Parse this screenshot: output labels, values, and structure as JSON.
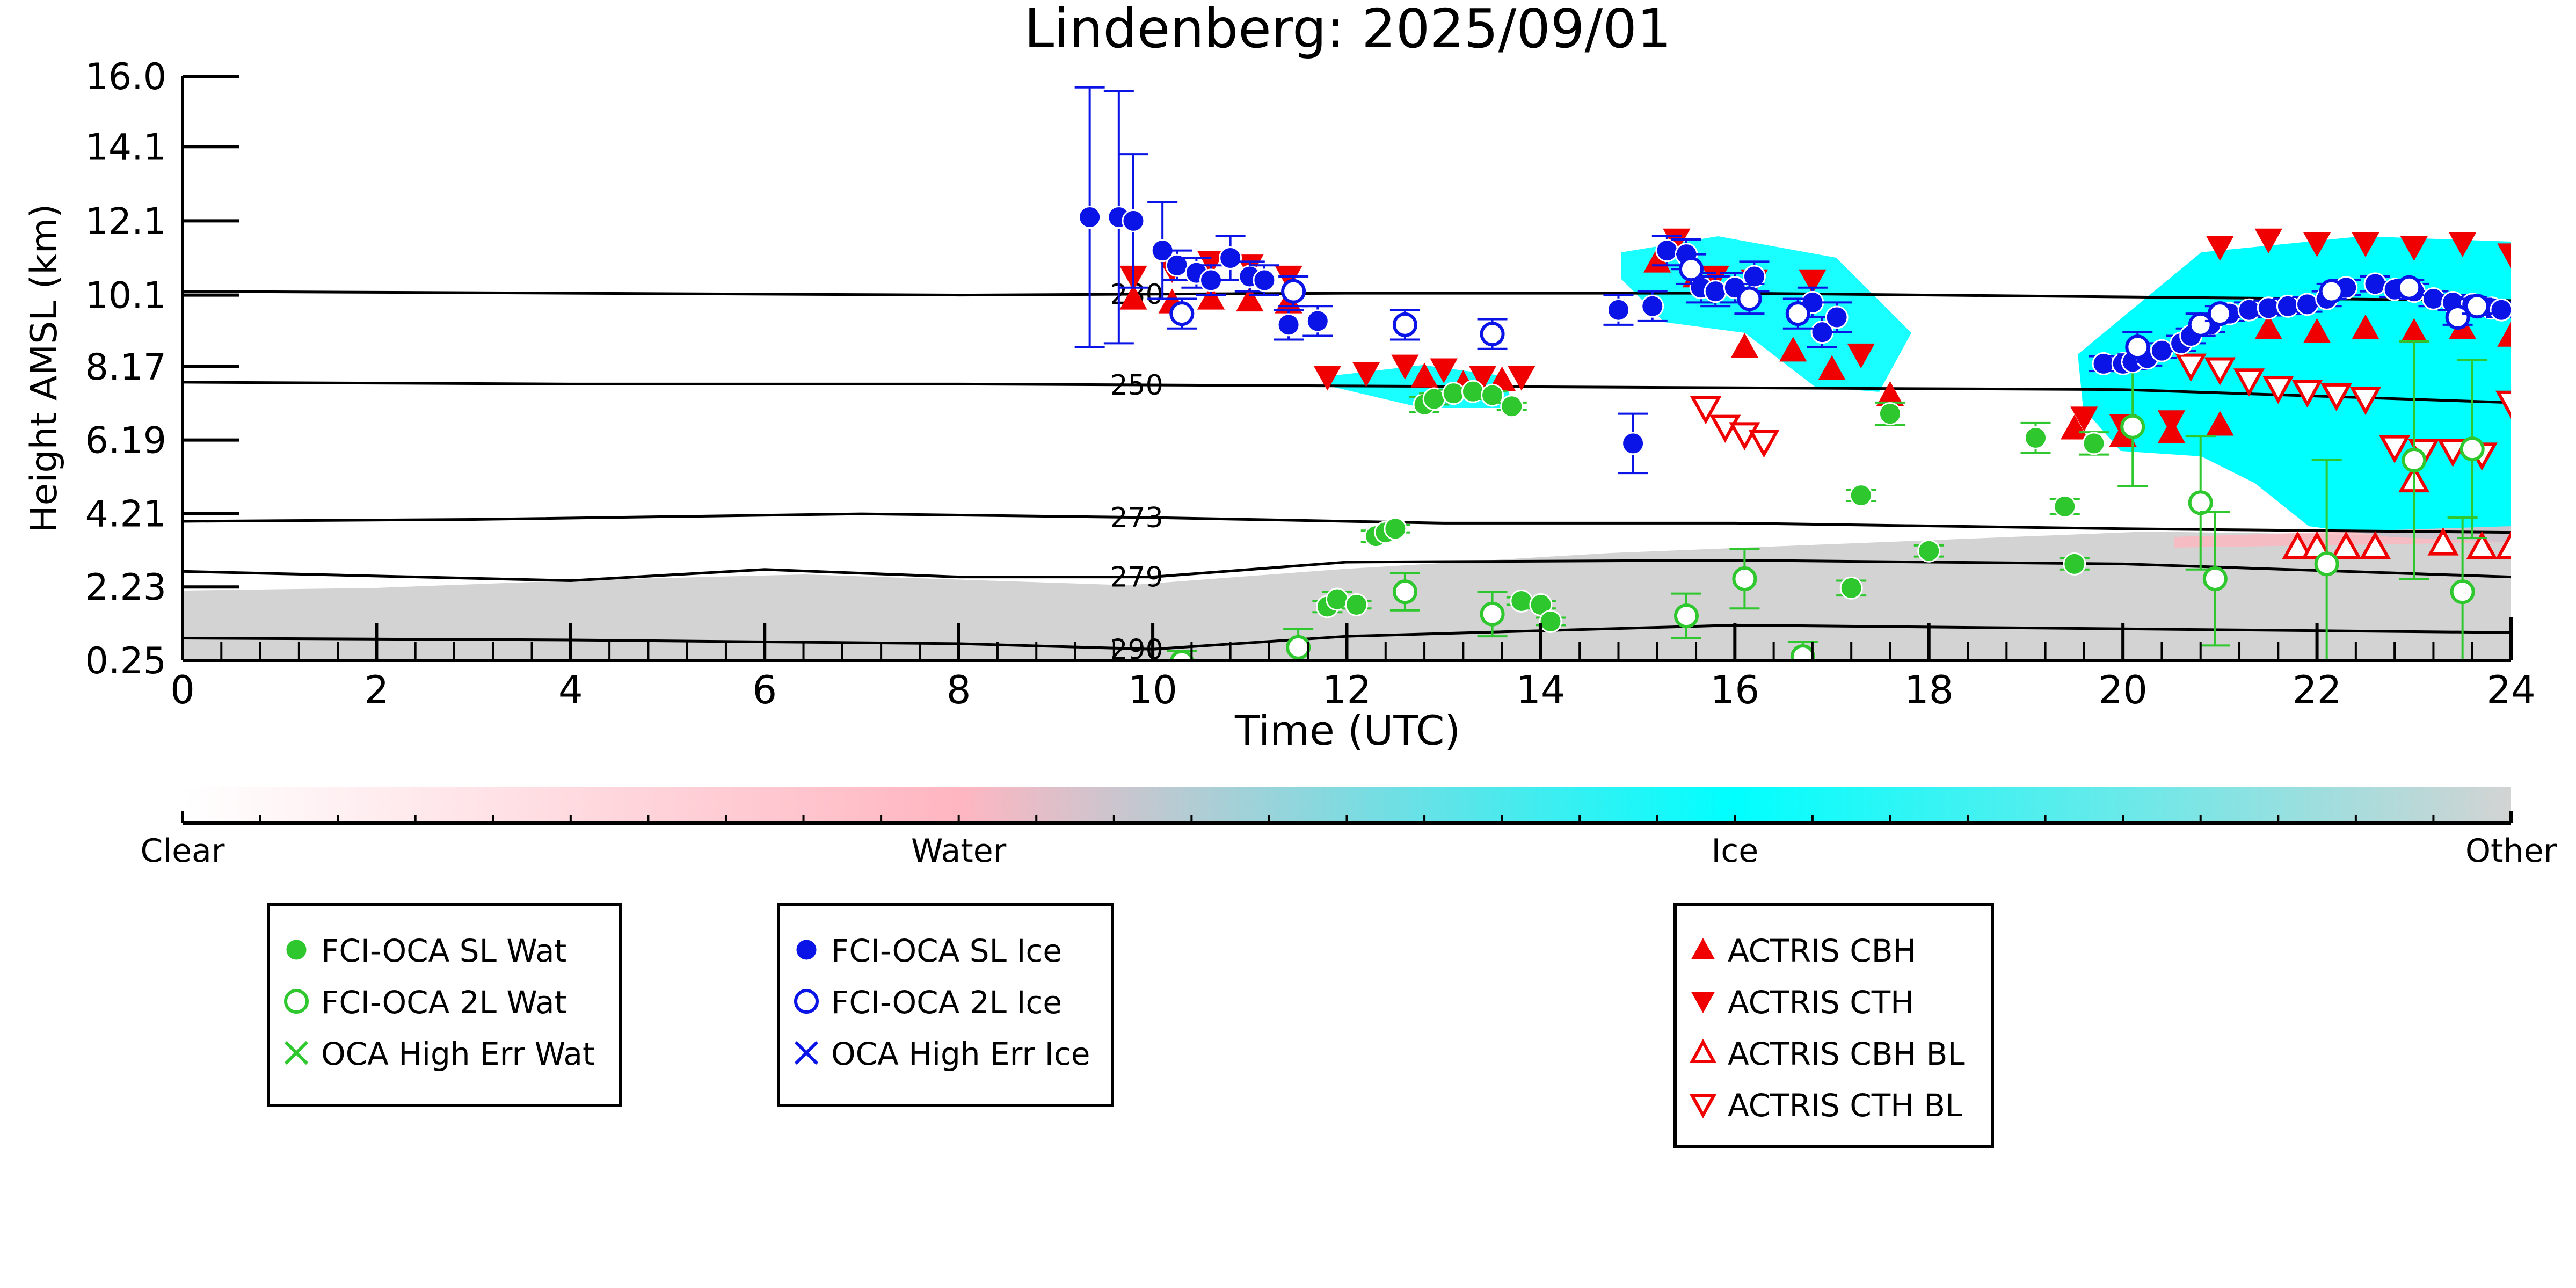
{
  "chart_data": {
    "type": "scatter",
    "title": "Lindenberg: 2025/09/01",
    "xlabel": "Time (UTC)",
    "ylabel": "Height AMSL (km)",
    "xlim": [
      0,
      24
    ],
    "ylim": [
      0.25,
      16.0
    ],
    "xticks": [
      "0",
      "2",
      "4",
      "6",
      "8",
      "10",
      "12",
      "14",
      "16",
      "18",
      "20",
      "22",
      "24"
    ],
    "yticks": [
      "0.25",
      "2.23",
      "4.21",
      "6.19",
      "8.17",
      "10.1",
      "12.1",
      "14.1",
      "16.0"
    ],
    "colorbar": {
      "labels": [
        "Clear",
        "Water",
        "Ice",
        "Other"
      ],
      "colors": [
        "#ffffff",
        "#ffb6c1",
        "#00ffff",
        "#d3d3d3"
      ]
    },
    "isotherms": [
      {
        "label": "230",
        "points": [
          [
            0,
            10.2
          ],
          [
            4,
            10.15
          ],
          [
            8,
            10.1
          ],
          [
            12,
            10.15
          ],
          [
            16,
            10.15
          ],
          [
            20,
            10.05
          ],
          [
            24,
            9.95
          ]
        ]
      },
      {
        "label": "250",
        "points": [
          [
            0,
            7.75
          ],
          [
            4,
            7.7
          ],
          [
            8,
            7.7
          ],
          [
            12,
            7.65
          ],
          [
            16,
            7.6
          ],
          [
            20,
            7.55
          ],
          [
            24,
            7.2
          ]
        ]
      },
      {
        "label": "273",
        "points": [
          [
            0,
            4.0
          ],
          [
            3,
            4.05
          ],
          [
            7,
            4.2
          ],
          [
            10,
            4.1
          ],
          [
            13,
            3.95
          ],
          [
            16,
            3.95
          ],
          [
            20,
            3.8
          ],
          [
            24,
            3.7
          ]
        ]
      },
      {
        "label": "279",
        "points": [
          [
            0,
            2.65
          ],
          [
            4,
            2.4
          ],
          [
            6,
            2.7
          ],
          [
            8,
            2.5
          ],
          [
            10,
            2.5
          ],
          [
            12,
            2.9
          ],
          [
            16,
            2.95
          ],
          [
            20,
            2.85
          ],
          [
            24,
            2.5
          ]
        ]
      },
      {
        "label": "290",
        "points": [
          [
            0,
            0.85
          ],
          [
            4,
            0.8
          ],
          [
            8,
            0.7
          ],
          [
            10,
            0.55
          ],
          [
            12,
            0.9
          ],
          [
            16,
            1.2
          ],
          [
            20,
            1.1
          ],
          [
            24,
            1.0
          ]
        ]
      }
    ],
    "series": [
      {
        "name": "FCI-OCA SL Wat",
        "marker": "circle-filled",
        "color": "#2ec82e",
        "x": [
          11.8,
          11.9,
          12.1,
          12.3,
          12.4,
          12.5,
          12.8,
          12.9,
          13.1,
          13.3,
          13.5,
          13.7,
          13.8,
          14.0,
          14.1,
          17.2,
          17.3,
          17.6,
          18.0,
          19.1,
          19.4,
          19.5,
          19.7
        ],
        "y": [
          1.7,
          1.9,
          1.75,
          3.6,
          3.7,
          3.8,
          7.15,
          7.3,
          7.45,
          7.5,
          7.4,
          7.1,
          1.85,
          1.75,
          1.3,
          2.2,
          4.7,
          6.9,
          3.2,
          6.25,
          4.4,
          2.85,
          6.1
        ],
        "err": [
          0.15,
          0.2,
          0.1,
          0.15,
          0.1,
          0.1,
          0.2,
          0.15,
          0.1,
          0.1,
          0.1,
          0.1,
          0.1,
          0.1,
          0.1,
          0.2,
          0.15,
          0.3,
          0.15,
          0.4,
          0.2,
          0.15,
          0.3
        ]
      },
      {
        "name": "FCI-OCA 2L Wat",
        "marker": "circle-open",
        "color": "#2ec82e",
        "x": [
          10.3,
          11.5,
          12.6,
          13.5,
          15.5,
          16.1,
          16.7,
          20.1,
          20.8,
          20.95,
          22.1,
          23.0,
          23.5,
          23.6
        ],
        "y": [
          0.2,
          0.6,
          2.1,
          1.5,
          1.45,
          2.45,
          0.35,
          6.55,
          4.5,
          2.45,
          2.85,
          5.65,
          2.1,
          5.95
        ],
        "err": [
          0.3,
          0.5,
          0.5,
          0.6,
          0.6,
          0.8,
          0.4,
          1.6,
          1.8,
          1.8,
          2.8,
          3.2,
          2.0,
          2.4
        ]
      },
      {
        "name": "OCA High Err Wat",
        "marker": "x",
        "color": "#2ec82e",
        "x": [],
        "y": []
      },
      {
        "name": "FCI-OCA SL Ice",
        "marker": "circle-filled",
        "color": "#0a14e6",
        "x": [
          9.35,
          9.65,
          9.8,
          10.1,
          10.25,
          10.45,
          10.6,
          10.8,
          11.0,
          11.15,
          11.4,
          11.7,
          14.8,
          14.95,
          15.15,
          15.3,
          15.5,
          15.65,
          15.8,
          16.0,
          16.2,
          16.8,
          16.9,
          17.05,
          19.8,
          20.0,
          20.1,
          20.25,
          20.4,
          20.6,
          20.7,
          20.9,
          21.1,
          21.3,
          21.5,
          21.7,
          21.9,
          22.1,
          22.3,
          22.6,
          22.8,
          23.0,
          23.2,
          23.4,
          23.6,
          23.8,
          23.9
        ],
        "y": [
          12.2,
          12.2,
          12.1,
          11.3,
          10.9,
          10.7,
          10.5,
          11.1,
          10.6,
          10.5,
          9.3,
          9.4,
          9.7,
          6.1,
          9.8,
          11.3,
          11.2,
          10.3,
          10.2,
          10.3,
          10.6,
          9.9,
          9.1,
          9.5,
          8.25,
          8.25,
          8.3,
          8.4,
          8.6,
          8.8,
          9.0,
          9.3,
          9.6,
          9.7,
          9.75,
          9.8,
          9.85,
          10.0,
          10.3,
          10.4,
          10.25,
          10.2,
          10.0,
          9.9,
          9.85,
          9.75,
          9.7
        ],
        "err": [
          3.5,
          3.4,
          1.8,
          1.3,
          0.4,
          0.4,
          0.4,
          0.6,
          0.4,
          0.4,
          0.4,
          0.4,
          0.4,
          0.8,
          0.4,
          0.4,
          0.4,
          0.4,
          0.4,
          0.4,
          0.4,
          0.4,
          0.4,
          0.4,
          0.2,
          0.2,
          0.2,
          0.2,
          0.2,
          0.2,
          0.2,
          0.2,
          0.2,
          0.2,
          0.2,
          0.2,
          0.2,
          0.2,
          0.2,
          0.2,
          0.2,
          0.2,
          0.2,
          0.2,
          0.2,
          0.2,
          0.2
        ]
      },
      {
        "name": "FCI-OCA 2L Ice",
        "marker": "circle-open",
        "color": "#0a14e6",
        "x": [
          10.3,
          11.45,
          12.6,
          13.5,
          15.55,
          16.15,
          16.65,
          20.15,
          20.8,
          21.0,
          22.15,
          22.95,
          23.45,
          23.65
        ],
        "y": [
          9.6,
          10.2,
          9.3,
          9.05,
          10.8,
          10.0,
          9.6,
          8.7,
          9.3,
          9.6,
          10.2,
          10.3,
          9.5,
          9.8
        ],
        "err": [
          0.4,
          0.4,
          0.4,
          0.4,
          0.4,
          0.4,
          0.4,
          0.4,
          0.3,
          0.2,
          0.2,
          0.2,
          0.2,
          0.2
        ]
      },
      {
        "name": "OCA High Err Ice",
        "marker": "x",
        "color": "#0a14e6",
        "x": [],
        "y": []
      },
      {
        "name": "ACTRIS CBH",
        "marker": "triangle-up-filled",
        "color": "#f00000",
        "x": [
          9.8,
          10.2,
          10.6,
          11.0,
          11.4,
          12.8,
          13.2,
          13.6,
          15.2,
          15.6,
          16.1,
          16.6,
          17.0,
          17.6,
          19.5,
          20.0,
          20.5,
          21.0,
          21.5,
          22.0,
          22.5,
          23.0,
          23.5,
          24.0
        ],
        "y": [
          10.0,
          9.9,
          10.0,
          9.95,
          9.9,
          7.9,
          7.7,
          7.8,
          11.0,
          10.6,
          8.7,
          8.6,
          8.1,
          7.4,
          6.5,
          6.3,
          6.4,
          6.6,
          9.2,
          9.1,
          9.2,
          9.1,
          9.2,
          9.0
        ]
      },
      {
        "name": "ACTRIS CTH",
        "marker": "triangle-down-filled",
        "color": "#f00000",
        "x": [
          9.8,
          10.2,
          10.6,
          11.0,
          11.4,
          11.8,
          12.2,
          12.6,
          13.0,
          13.4,
          13.8,
          15.4,
          15.8,
          16.2,
          16.8,
          17.3,
          19.6,
          20.0,
          20.5,
          21.0,
          21.5,
          22.0,
          22.5,
          23.0,
          23.5,
          24.0
        ],
        "y": [
          10.6,
          10.8,
          11.0,
          10.9,
          10.6,
          7.9,
          8.0,
          8.2,
          8.1,
          7.9,
          7.9,
          11.6,
          10.6,
          10.5,
          10.5,
          8.5,
          6.8,
          6.6,
          6.7,
          11.4,
          11.6,
          11.5,
          11.5,
          11.4,
          11.5,
          11.2
        ]
      },
      {
        "name": "ACTRIS CBH BL",
        "marker": "triangle-up-open",
        "color": "#f00000",
        "x": [
          21.8,
          22.0,
          22.3,
          22.6,
          23.0,
          23.3,
          23.7,
          24.0
        ],
        "y": [
          3.3,
          3.3,
          3.3,
          3.3,
          5.1,
          3.4,
          3.3,
          3.3
        ]
      },
      {
        "name": "ACTRIS CTH BL",
        "marker": "triangle-down-open",
        "color": "#f00000",
        "x": [
          15.7,
          15.9,
          16.1,
          16.3,
          20.7,
          21.0,
          21.3,
          21.6,
          21.9,
          22.2,
          22.5,
          22.8,
          23.1,
          23.4,
          23.7,
          24.0
        ],
        "y": [
          7.05,
          6.55,
          6.35,
          6.15,
          8.2,
          8.1,
          7.8,
          7.6,
          7.5,
          7.4,
          7.3,
          6.0,
          5.9,
          5.9,
          5.8,
          7.2
        ]
      }
    ],
    "legends": [
      {
        "entries": [
          "FCI-OCA SL Wat",
          "FCI-OCA 2L Wat",
          "OCA High Err Wat"
        ]
      },
      {
        "entries": [
          "FCI-OCA SL Ice",
          "FCI-OCA 2L Ice",
          "OCA High Err Ice"
        ]
      },
      {
        "entries": [
          "ACTRIS CBH",
          "ACTRIS CTH",
          "ACTRIS CBH BL",
          "ACTRIS CTH BL"
        ]
      }
    ]
  }
}
